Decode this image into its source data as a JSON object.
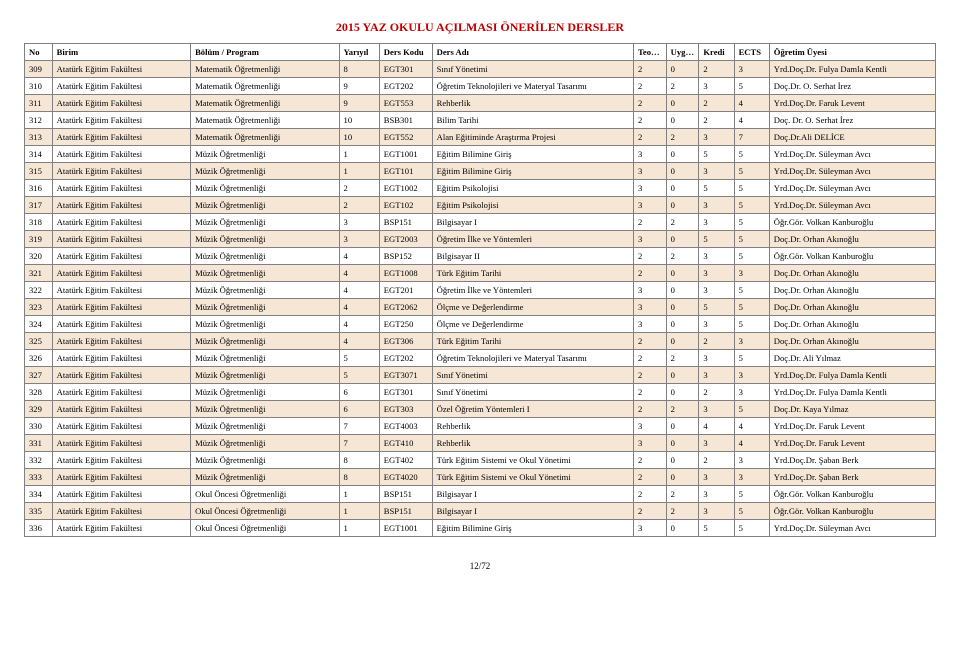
{
  "title": "2015 YAZ OKULU AÇILMASI ÖNERİLEN DERSLER",
  "pager": "12/72",
  "columns": [
    "No",
    "Birim",
    "Bölüm / Program",
    "Yarıyıl",
    "Ders Kodu",
    "Ders Adı",
    "Teo. Saat",
    "Uyg. Saat",
    "Kredi",
    "ECTS",
    "Öğretim Üyesi"
  ],
  "rows": [
    {
      "no": "309",
      "birim": "Atatürk Eğitim Fakültesi",
      "prog": "Matematik Öğretmenliği",
      "yariyil": "8",
      "kod": "EGT301",
      "ad": "Sınıf Yönetimi",
      "teo": "2",
      "uyg": "0",
      "kredi": "2",
      "ects": "3",
      "uyesi": "Yrd.Doç.Dr. Fulya Damla Kentli"
    },
    {
      "no": "310",
      "birim": "Atatürk Eğitim Fakültesi",
      "prog": "Matematik Öğretmenliği",
      "yariyil": "9",
      "kod": "EGT202",
      "ad": "Öğretim Teknolojileri ve Materyal Tasarımı",
      "teo": "2",
      "uyg": "2",
      "kredi": "3",
      "ects": "5",
      "uyesi": "Doç.Dr. O. Serhat İrez"
    },
    {
      "no": "311",
      "birim": "Atatürk Eğitim Fakültesi",
      "prog": "Matematik Öğretmenliği",
      "yariyil": "9",
      "kod": "EGT553",
      "ad": "Rehberlik",
      "teo": "2",
      "uyg": "0",
      "kredi": "2",
      "ects": "4",
      "uyesi": "Yrd.Doç.Dr. Faruk Levent"
    },
    {
      "no": "312",
      "birim": "Atatürk Eğitim Fakültesi",
      "prog": "Matematik Öğretmenliği",
      "yariyil": "10",
      "kod": "BSB301",
      "ad": "Bilim Tarihi",
      "teo": "2",
      "uyg": "0",
      "kredi": "2",
      "ects": "4",
      "uyesi": "Doç. Dr. O. Serhat İrez"
    },
    {
      "no": "313",
      "birim": "Atatürk Eğitim Fakültesi",
      "prog": "Matematik Öğretmenliği",
      "yariyil": "10",
      "kod": "EGT552",
      "ad": "Alan Eğitiminde Araştırma Projesi",
      "teo": "2",
      "uyg": "2",
      "kredi": "3",
      "ects": "7",
      "uyesi": "Doç.Dr.Ali DELİCE"
    },
    {
      "no": "314",
      "birim": "Atatürk Eğitim Fakültesi",
      "prog": "Müzik Öğretmenliği",
      "yariyil": "1",
      "kod": "EGT1001",
      "ad": "Eğitim Bilimine Giriş",
      "teo": "3",
      "uyg": "0",
      "kredi": "5",
      "ects": "5",
      "uyesi": "Yrd.Doç.Dr. Süleyman Avcı"
    },
    {
      "no": "315",
      "birim": "Atatürk Eğitim Fakültesi",
      "prog": "Müzik Öğretmenliği",
      "yariyil": "1",
      "kod": "EGT101",
      "ad": "Eğitim Bilimine Giriş",
      "teo": "3",
      "uyg": "0",
      "kredi": "3",
      "ects": "5",
      "uyesi": "Yrd.Doç.Dr. Süleyman Avcı"
    },
    {
      "no": "316",
      "birim": "Atatürk Eğitim Fakültesi",
      "prog": "Müzik Öğretmenliği",
      "yariyil": "2",
      "kod": "EGT1002",
      "ad": "Eğitim Psikolojisi",
      "teo": "3",
      "uyg": "0",
      "kredi": "5",
      "ects": "5",
      "uyesi": "Yrd.Doç.Dr. Süleyman Avcı"
    },
    {
      "no": "317",
      "birim": "Atatürk Eğitim Fakültesi",
      "prog": "Müzik Öğretmenliği",
      "yariyil": "2",
      "kod": "EGT102",
      "ad": "Eğitim Psikolojisi",
      "teo": "3",
      "uyg": "0",
      "kredi": "3",
      "ects": "5",
      "uyesi": "Yrd.Doç.Dr. Süleyman Avcı"
    },
    {
      "no": "318",
      "birim": "Atatürk Eğitim Fakültesi",
      "prog": "Müzik Öğretmenliği",
      "yariyil": "3",
      "kod": "BSP151",
      "ad": "Bilgisayar I",
      "teo": "2",
      "uyg": "2",
      "kredi": "3",
      "ects": "5",
      "uyesi": "Öğr.Gör. Volkan Kanburoğlu"
    },
    {
      "no": "319",
      "birim": "Atatürk Eğitim Fakültesi",
      "prog": "Müzik Öğretmenliği",
      "yariyil": "3",
      "kod": "EGT2003",
      "ad": "Öğretim İlke ve Yöntemleri",
      "teo": "3",
      "uyg": "0",
      "kredi": "5",
      "ects": "5",
      "uyesi": "Doç.Dr. Orhan Akınoğlu"
    },
    {
      "no": "320",
      "birim": "Atatürk Eğitim Fakültesi",
      "prog": "Müzik Öğretmenliği",
      "yariyil": "4",
      "kod": "BSP152",
      "ad": "Bilgisayar II",
      "teo": "2",
      "uyg": "2",
      "kredi": "3",
      "ects": "5",
      "uyesi": "Öğr.Gör. Volkan Kanburoğlu"
    },
    {
      "no": "321",
      "birim": "Atatürk Eğitim Fakültesi",
      "prog": "Müzik Öğretmenliği",
      "yariyil": "4",
      "kod": "EGT1008",
      "ad": "Türk Eğitim Tarihi",
      "teo": "2",
      "uyg": "0",
      "kredi": "3",
      "ects": "3",
      "uyesi": "Doç.Dr. Orhan Akınoğlu"
    },
    {
      "no": "322",
      "birim": "Atatürk Eğitim Fakültesi",
      "prog": "Müzik Öğretmenliği",
      "yariyil": "4",
      "kod": "EGT201",
      "ad": "Öğretim İlke ve Yöntemleri",
      "teo": "3",
      "uyg": "0",
      "kredi": "3",
      "ects": "5",
      "uyesi": "Doç.Dr. Orhan Akınoğlu"
    },
    {
      "no": "323",
      "birim": "Atatürk Eğitim Fakültesi",
      "prog": "Müzik Öğretmenliği",
      "yariyil": "4",
      "kod": "EGT2062",
      "ad": "Ölçme ve Değerlendirme",
      "teo": "3",
      "uyg": "0",
      "kredi": "5",
      "ects": "5",
      "uyesi": "Doç.Dr. Orhan Akınoğlu"
    },
    {
      "no": "324",
      "birim": "Atatürk Eğitim Fakültesi",
      "prog": "Müzik Öğretmenliği",
      "yariyil": "4",
      "kod": "EGT250",
      "ad": "Ölçme ve Değerlendirme",
      "teo": "3",
      "uyg": "0",
      "kredi": "3",
      "ects": "5",
      "uyesi": "Doç.Dr. Orhan Akınoğlu"
    },
    {
      "no": "325",
      "birim": "Atatürk Eğitim Fakültesi",
      "prog": "Müzik Öğretmenliği",
      "yariyil": "4",
      "kod": "EGT306",
      "ad": "Türk Eğitim Tarihi",
      "teo": "2",
      "uyg": "0",
      "kredi": "2",
      "ects": "3",
      "uyesi": "Doç.Dr. Orhan Akınoğlu"
    },
    {
      "no": "326",
      "birim": "Atatürk Eğitim Fakültesi",
      "prog": "Müzik Öğretmenliği",
      "yariyil": "5",
      "kod": "EGT202",
      "ad": "Öğretim Teknolojileri ve Materyal Tasarımı",
      "teo": "2",
      "uyg": "2",
      "kredi": "3",
      "ects": "5",
      "uyesi": "Doç.Dr. Ali Yılmaz"
    },
    {
      "no": "327",
      "birim": "Atatürk Eğitim Fakültesi",
      "prog": "Müzik Öğretmenliği",
      "yariyil": "5",
      "kod": "EGT3071",
      "ad": "Sınıf Yönetimi",
      "teo": "2",
      "uyg": "0",
      "kredi": "3",
      "ects": "3",
      "uyesi": "Yrd.Doç.Dr. Fulya Damla Kentli"
    },
    {
      "no": "328",
      "birim": "Atatürk Eğitim Fakültesi",
      "prog": "Müzik Öğretmenliği",
      "yariyil": "6",
      "kod": "EGT301",
      "ad": "Sınıf Yönetimi",
      "teo": "2",
      "uyg": "0",
      "kredi": "2",
      "ects": "3",
      "uyesi": "Yrd.Doç.Dr. Fulya Damla Kentli"
    },
    {
      "no": "329",
      "birim": "Atatürk Eğitim Fakültesi",
      "prog": "Müzik Öğretmenliği",
      "yariyil": "6",
      "kod": "EGT303",
      "ad": "Özel Öğretim Yöntemleri I",
      "teo": "2",
      "uyg": "2",
      "kredi": "3",
      "ects": "5",
      "uyesi": "Doç.Dr. Kaya Yılmaz"
    },
    {
      "no": "330",
      "birim": "Atatürk Eğitim Fakültesi",
      "prog": "Müzik Öğretmenliği",
      "yariyil": "7",
      "kod": "EGT4003",
      "ad": "Rehberlik",
      "teo": "3",
      "uyg": "0",
      "kredi": "4",
      "ects": "4",
      "uyesi": "Yrd.Doç.Dr. Faruk Levent"
    },
    {
      "no": "331",
      "birim": "Atatürk Eğitim Fakültesi",
      "prog": "Müzik Öğretmenliği",
      "yariyil": "7",
      "kod": "EGT410",
      "ad": "Rehberlik",
      "teo": "3",
      "uyg": "0",
      "kredi": "3",
      "ects": "4",
      "uyesi": "Yrd.Doç.Dr. Faruk Levent"
    },
    {
      "no": "332",
      "birim": "Atatürk Eğitim Fakültesi",
      "prog": "Müzik Öğretmenliği",
      "yariyil": "8",
      "kod": "EGT402",
      "ad": "Türk Eğitim Sistemi ve Okul Yönetimi",
      "teo": "2",
      "uyg": "0",
      "kredi": "2",
      "ects": "3",
      "uyesi": "Yrd.Doç.Dr. Şaban Berk"
    },
    {
      "no": "333",
      "birim": "Atatürk Eğitim Fakültesi",
      "prog": "Müzik Öğretmenliği",
      "yariyil": "8",
      "kod": "EGT4020",
      "ad": "Türk Eğitim Sistemi ve Okul Yönetimi",
      "teo": "2",
      "uyg": "0",
      "kredi": "3",
      "ects": "3",
      "uyesi": "Yrd.Doç.Dr. Şaban Berk"
    },
    {
      "no": "334",
      "birim": "Atatürk Eğitim Fakültesi",
      "prog": "Okul Öncesi Öğretmenliği",
      "yariyil": "1",
      "kod": "BSP151",
      "ad": "Bilgisayar I",
      "teo": "2",
      "uyg": "2",
      "kredi": "3",
      "ects": "5",
      "uyesi": "Öğr.Gör. Volkan Kanburoğlu"
    },
    {
      "no": "335",
      "birim": "Atatürk Eğitim Fakültesi",
      "prog": "Okul Öncesi Öğretmenliği",
      "yariyil": "1",
      "kod": "BSP151",
      "ad": "Bilgisayar I",
      "teo": "2",
      "uyg": "2",
      "kredi": "3",
      "ects": "5",
      "uyesi": "Öğr.Gör. Volkan Kanburoğlu"
    },
    {
      "no": "336",
      "birim": "Atatürk Eğitim Fakültesi",
      "prog": "Okul Öncesi Öğretmenliği",
      "yariyil": "1",
      "kod": "EGT1001",
      "ad": "Eğitim Bilimine Giriş",
      "teo": "3",
      "uyg": "0",
      "kredi": "5",
      "ects": "5",
      "uyesi": "Yrd.Doç.Dr. Süleyman Avcı"
    }
  ]
}
